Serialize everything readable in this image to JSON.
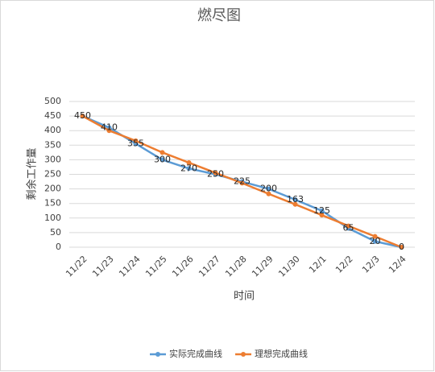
{
  "chart_data": {
    "type": "line",
    "title": "燃尽图",
    "x_label": "时间",
    "y_label": "剩余工作量",
    "categories": [
      "11/22",
      "11/23",
      "11/24",
      "11/25",
      "11/26",
      "11/27",
      "11/28",
      "11/29",
      "11/30",
      "12/1",
      "12/2",
      "12/3",
      "12/4"
    ],
    "series": [
      {
        "name": "实际完成曲线",
        "color": "#5b9bd5",
        "values": [
          450,
          410,
          355,
          300,
          270,
          250,
          225,
          200,
          163,
          125,
          65,
          20,
          0
        ]
      },
      {
        "name": "理想完成曲线",
        "color": "#ed7d31",
        "values": [
          450,
          400,
          365,
          325,
          290,
          255,
          220,
          183,
          147,
          110,
          73,
          37,
          0
        ]
      }
    ],
    "ylim": [
      0,
      500
    ],
    "yticks": [
      0,
      50,
      100,
      150,
      200,
      250,
      300,
      350,
      400,
      450,
      500
    ],
    "grid": true,
    "legend": "bottom"
  }
}
